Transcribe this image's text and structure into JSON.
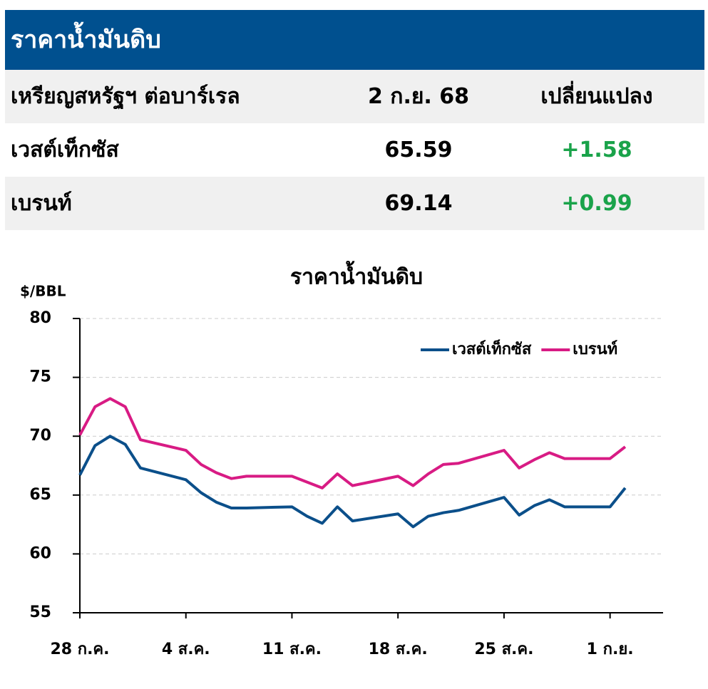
{
  "header": {
    "title": "ราคาน้ำมันดิบ"
  },
  "table": {
    "columns": [
      "เหรียญสหรัฐฯ ต่อบาร์เรล",
      "2 ก.ย. 68",
      "เปลี่ยนแปลง"
    ],
    "rows": [
      [
        "เวสต์เท็กซัส",
        "65.59",
        "+1.58"
      ],
      [
        "เบรนท์",
        "69.14",
        "+0.99"
      ]
    ]
  },
  "chart_data": {
    "type": "line",
    "title": "ราคาน้ำมันดิบ",
    "y_label": "$/BBL",
    "x": [
      0,
      1,
      2,
      3,
      4,
      7,
      8,
      9,
      10,
      11,
      14,
      15,
      16,
      17,
      18,
      21,
      22,
      23,
      24,
      25,
      28,
      29,
      30,
      31,
      32,
      35,
      36
    ],
    "xlim": [
      0,
      38.5
    ],
    "xticks": [
      {
        "value": 0,
        "label": "28 ก.ค."
      },
      {
        "value": 7,
        "label": "4 ส.ค."
      },
      {
        "value": 14,
        "label": "11 ส.ค."
      },
      {
        "value": 21,
        "label": "18 ส.ค."
      },
      {
        "value": 28,
        "label": "25 ส.ค."
      },
      {
        "value": 35,
        "label": "1 ก.ย."
      }
    ],
    "ylim": [
      55,
      80
    ],
    "yticks": [
      55,
      60,
      65,
      70,
      75,
      80
    ],
    "grid": true,
    "legend": "top-right",
    "series": [
      {
        "name": "เวสต์เท็กซัส",
        "color": "#0b4f8a",
        "values": [
          66.7,
          69.2,
          70.0,
          69.3,
          67.3,
          66.3,
          65.2,
          64.4,
          63.9,
          63.9,
          64.0,
          63.2,
          62.6,
          64.0,
          62.8,
          63.4,
          62.3,
          63.2,
          63.5,
          63.7,
          64.8,
          63.3,
          64.1,
          64.6,
          64.0,
          64.0,
          65.6
        ]
      },
      {
        "name": "เบรนท์",
        "color": "#d81b84",
        "values": [
          70.1,
          72.5,
          73.2,
          72.5,
          69.7,
          68.8,
          67.6,
          66.9,
          66.4,
          66.6,
          66.6,
          66.1,
          65.6,
          66.8,
          65.8,
          66.6,
          65.8,
          66.8,
          67.6,
          67.7,
          68.8,
          67.3,
          68.0,
          68.6,
          68.1,
          68.1,
          69.1
        ]
      }
    ]
  }
}
